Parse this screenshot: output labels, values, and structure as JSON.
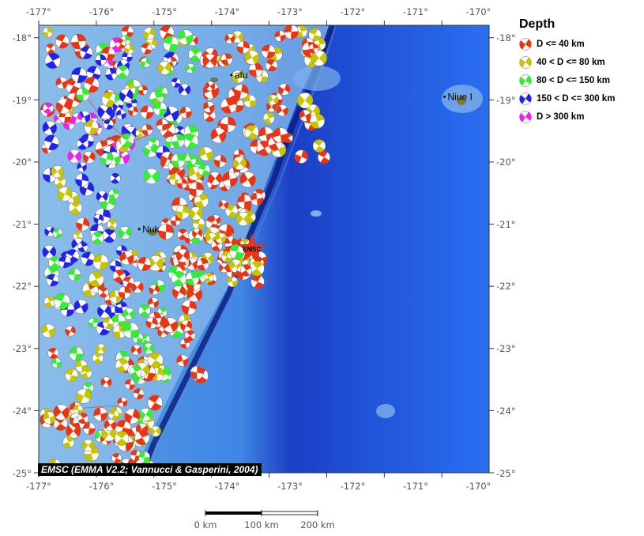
{
  "map": {
    "lon_ticks": [
      "-177°",
      "-176°",
      "-175°",
      "-174°",
      "-173°",
      "-172°",
      "-171°",
      "-170°"
    ],
    "lat_ticks": [
      "-18°",
      "-19°",
      "-20°",
      "-21°",
      "-22°",
      "-23°",
      "-24°",
      "-25°"
    ],
    "place_labels": [
      {
        "name": "Nuk",
        "lon": -175.2,
        "lat": -21.13
      },
      {
        "name": "afu",
        "lon": -173.6,
        "lat": -18.65
      },
      {
        "name": "Niue I",
        "lon": -169.9,
        "lat": -19.0
      }
    ],
    "marker_label": "EMSC",
    "marker_lon": -173.3,
    "marker_lat": -21.4,
    "credit": "EMSC (EMMA V2.2; Vannucci & Gasperini, 2004)"
  },
  "legend": {
    "title": "Depth",
    "items": [
      {
        "label": "D <= 40 km",
        "color": "#ee3311"
      },
      {
        "label": "40 < D <= 80 km",
        "color": "#c8c400"
      },
      {
        "label": "80 < D <= 150 km",
        "color": "#33ee33"
      },
      {
        "label": "150 < D <= 300 km",
        "color": "#2222ee"
      },
      {
        "label": "D > 300 km",
        "color": "#ee22ee"
      }
    ]
  },
  "scale_bar": {
    "labels": [
      "0 km",
      "100 km",
      "200 km"
    ]
  }
}
